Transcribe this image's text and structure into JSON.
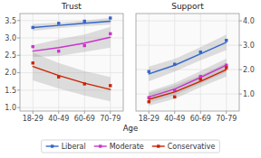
{
  "chart_data": [
    {
      "type": "line",
      "title": "Trust",
      "x_label": "Age",
      "categories": [
        "18-29",
        "40-49",
        "60-69",
        "70-79"
      ],
      "series": [
        {
          "name": "Liberal",
          "color": "#3366CC",
          "marker": "square",
          "values": [
            3.3,
            3.36,
            3.42,
            3.48
          ],
          "points": [
            3.3,
            3.42,
            3.48,
            3.57
          ],
          "ci_low": [
            3.2,
            3.28,
            3.34,
            3.38
          ],
          "ci_high": [
            3.4,
            3.44,
            3.5,
            3.58
          ]
        },
        {
          "name": "Moderate",
          "color": "#CC33CC",
          "marker": "square",
          "values": [
            2.62,
            2.72,
            2.85,
            3.02
          ],
          "points": [
            2.75,
            2.62,
            2.78,
            3.12
          ],
          "ci_low": [
            2.45,
            2.48,
            2.6,
            2.72
          ],
          "ci_high": [
            2.79,
            2.96,
            3.1,
            3.32
          ]
        },
        {
          "name": "Conservative",
          "color": "#CC2200",
          "marker": "square",
          "values": [
            2.18,
            1.92,
            1.7,
            1.52
          ],
          "points": [
            2.28,
            1.88,
            1.68,
            1.63
          ],
          "ci_low": [
            1.78,
            1.55,
            1.35,
            1.18
          ],
          "ci_high": [
            2.58,
            2.28,
            2.05,
            1.88
          ]
        }
      ],
      "ylim": [
        0.9,
        3.7
      ],
      "yticks": [
        {
          "value": 1.0,
          "label": "1.0"
        },
        1.5,
        {
          "value": 2.0,
          "label": "2.0"
        },
        2.5,
        {
          "value": 3.0,
          "label": "3.0"
        },
        3.5
      ],
      "grid": true,
      "legend": "bottom"
    },
    {
      "type": "line",
      "title": "Support",
      "categories": [
        "18-29",
        "40-49",
        "60-69",
        "70-79"
      ],
      "series": [
        {
          "name": "Liberal",
          "color": "#3366CC",
          "marker": "square",
          "values": [
            1.82,
            2.18,
            2.65,
            3.12
          ],
          "points": [
            1.92,
            2.22,
            2.72,
            3.2
          ],
          "ci_low": [
            1.52,
            1.92,
            2.38,
            2.8
          ],
          "ci_high": [
            2.12,
            2.44,
            2.92,
            3.44
          ]
        },
        {
          "name": "Moderate",
          "color": "#CC33CC",
          "marker": "square",
          "values": [
            0.88,
            1.2,
            1.68,
            2.18
          ],
          "points": [
            0.85,
            1.15,
            1.72,
            2.18
          ],
          "ci_low": [
            0.65,
            0.95,
            1.42,
            1.9
          ],
          "ci_high": [
            1.11,
            1.45,
            1.94,
            2.46
          ]
        },
        {
          "name": "Conservative",
          "color": "#CC2200",
          "marker": "square",
          "values": [
            0.78,
            1.08,
            1.52,
            2.0
          ],
          "points": [
            0.68,
            0.88,
            1.6,
            2.08
          ],
          "ci_low": [
            0.52,
            0.8,
            1.28,
            1.72
          ],
          "ci_high": [
            1.04,
            1.36,
            1.76,
            2.28
          ]
        }
      ],
      "ylim": [
        0.3,
        4.3
      ],
      "yticks": [
        {
          "value": 1.0,
          "label": "1.0"
        },
        {
          "value": 2.0,
          "label": "2.0"
        },
        {
          "value": 3.0,
          "label": "3.0"
        },
        {
          "value": 4.0,
          "label": "4.0"
        }
      ],
      "grid": true
    }
  ]
}
